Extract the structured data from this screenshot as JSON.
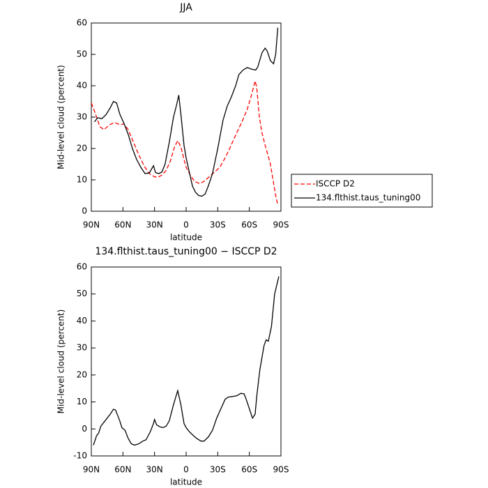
{
  "chart_data": [
    {
      "type": "line",
      "title": "JJA",
      "xlabel": "latitude",
      "ylabel": "Mid-level cloud (percent)",
      "xlim": [
        90,
        -90
      ],
      "xticks": [
        {
          "value": 90,
          "label": "90N"
        },
        {
          "value": 60,
          "label": "60N"
        },
        {
          "value": 30,
          "label": "30N"
        },
        0,
        {
          "value": -30,
          "label": "30S"
        },
        {
          "value": -60,
          "label": "60S"
        },
        {
          "value": -90,
          "label": "90S"
        }
      ],
      "ylim": [
        0,
        60
      ],
      "yticks": [
        0,
        10,
        20,
        30,
        40,
        50,
        60
      ],
      "legend": "right",
      "series": [
        {
          "name": "ISCCP D2",
          "color": "#ff0000",
          "style": "dashed",
          "x": [
            90,
            86,
            82,
            78,
            73,
            68,
            63,
            59,
            55,
            50,
            45,
            40,
            35,
            30,
            27,
            23,
            19,
            15,
            11,
            8,
            5,
            2,
            0,
            -4,
            -8,
            -13,
            -17,
            -22,
            -27,
            -32,
            -37,
            -42,
            -48,
            -53,
            -58,
            -62,
            -65.5,
            -67,
            -69.5,
            -72,
            -75,
            -78,
            -80,
            -82,
            -85,
            -87
          ],
          "values": [
            34.5,
            31,
            27,
            26,
            27.5,
            28.3,
            27.6,
            27.8,
            26,
            22,
            18,
            14.5,
            12,
            11,
            10.8,
            11.5,
            13,
            16,
            20.5,
            22.5,
            20.5,
            16.5,
            14,
            11.5,
            9.5,
            8.8,
            9.5,
            11,
            12.5,
            14,
            17,
            20.5,
            25,
            28.5,
            32.5,
            37,
            41.5,
            39.5,
            30,
            25,
            21,
            17.5,
            15,
            11,
            5,
            2
          ]
        },
        {
          "name": "134.flthist.taus_tuning00",
          "color": "#000000",
          "style": "solid",
          "x": [
            87,
            84,
            80,
            76,
            72,
            69,
            66,
            63,
            59,
            55,
            51,
            47,
            43,
            39,
            35,
            31,
            29,
            26,
            23,
            20,
            16,
            12,
            9,
            7,
            5,
            2,
            0,
            -3,
            -6,
            -9,
            -12,
            -15,
            -18,
            -21,
            -25,
            -30,
            -35,
            -39,
            -43,
            -47,
            -50,
            -54,
            -58,
            -62,
            -66,
            -68,
            -72,
            -75,
            -77,
            -80,
            -83,
            -85,
            -87
          ],
          "values": [
            28.5,
            29.8,
            29.5,
            30.8,
            33,
            35,
            34.5,
            31,
            28,
            24.5,
            20,
            16.5,
            14,
            12,
            12.2,
            14.5,
            12.3,
            12,
            12.5,
            15,
            22,
            30,
            34,
            37,
            31,
            21,
            17,
            12.5,
            8,
            6,
            5,
            4.8,
            5.5,
            8,
            12,
            20,
            29,
            33.5,
            36.5,
            40,
            43.5,
            45,
            45.8,
            45.3,
            45,
            46,
            50.5,
            52,
            51,
            48,
            47,
            50,
            58.5
          ]
        }
      ]
    },
    {
      "type": "line",
      "title": "134.flthist.taus_tuning00 − ISCCP D2",
      "xlabel": "latitude",
      "ylabel": "Mid-level cloud (percent)",
      "xlim": [
        90,
        -90
      ],
      "xticks": [
        {
          "value": 90,
          "label": "90N"
        },
        {
          "value": 60,
          "label": "60N"
        },
        {
          "value": 30,
          "label": "30N"
        },
        0,
        {
          "value": -30,
          "label": "30S"
        },
        {
          "value": -60,
          "label": "60S"
        },
        {
          "value": -90,
          "label": "90S"
        }
      ],
      "ylim": [
        -10,
        60
      ],
      "yticks": [
        -10,
        0,
        10,
        20,
        30,
        40,
        50,
        60
      ],
      "series": [
        {
          "color": "#000000",
          "style": "solid",
          "x": [
            88,
            85,
            83,
            81,
            77,
            72,
            69,
            67,
            63,
            61,
            58,
            55,
            52,
            49,
            45,
            41,
            38,
            34,
            31,
            30,
            28,
            25,
            22,
            19,
            16,
            12,
            8,
            5,
            2,
            0,
            -3,
            -7,
            -10,
            -14,
            -17,
            -21,
            -25,
            -29,
            -33,
            -37,
            -40,
            -44,
            -48,
            -52,
            -55,
            -57,
            -60,
            -63,
            -65.5,
            -67,
            -70,
            -74,
            -76,
            -78,
            -81,
            -84,
            -88
          ],
          "values": [
            -6,
            -2.5,
            -1.5,
            1,
            3,
            5.5,
            7.3,
            7,
            3,
            0.5,
            -0.5,
            -3.5,
            -5.5,
            -6,
            -5.5,
            -4.5,
            -4,
            -1,
            2,
            3.5,
            1.5,
            0.8,
            0.5,
            1,
            3,
            9,
            14.2,
            9,
            2,
            0.5,
            -1,
            -2.5,
            -3.5,
            -4.5,
            -4.5,
            -3,
            -0.5,
            4,
            7.5,
            11,
            11.8,
            12,
            12.3,
            13.2,
            13,
            11,
            7.5,
            4,
            5.5,
            12,
            22,
            31,
            33,
            32.5,
            38,
            50,
            56.5
          ]
        }
      ]
    }
  ]
}
